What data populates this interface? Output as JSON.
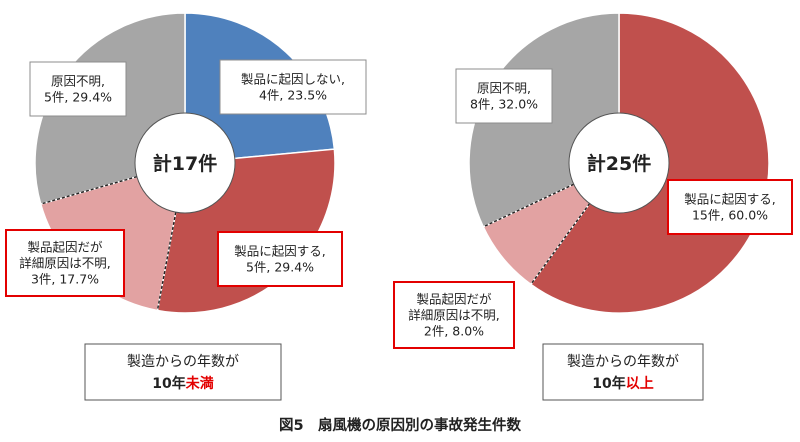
{
  "figure_title": "図5　扇風機の原因別の事故発生件数",
  "colors": {
    "not_product": "#4f81bd",
    "product": "#c0504d",
    "product_detail_unknown": "#e2a2a2",
    "unknown": "#a6a6a6",
    "label_border_red": "#e30000",
    "highlight_red": "#e30000"
  },
  "chart_data": [
    {
      "type": "pie",
      "variant": "donut",
      "center_label": "計17件",
      "caption_line1": "製造からの年数が",
      "caption_line2_prefix": "10年",
      "caption_line2_highlight": "未満",
      "total": 17,
      "slices": [
        {
          "lines": [
            "製品に起因しない,",
            "4件, 23.5%"
          ],
          "count": 4,
          "percent": 23.5,
          "color": "#4f81bd",
          "red_box": false
        },
        {
          "lines": [
            "製品に起因する,",
            "5件, 29.4%"
          ],
          "count": 5,
          "percent": 29.4,
          "color": "#c0504d",
          "red_box": true
        },
        {
          "lines": [
            "製品起因だが",
            "詳細原因は不明,",
            "3件, 17.7%"
          ],
          "count": 3,
          "percent": 17.7,
          "color": "#e2a2a2",
          "red_box": true
        },
        {
          "lines": [
            "原因不明,",
            "5件, 29.4%"
          ],
          "count": 5,
          "percent": 29.4,
          "color": "#a6a6a6",
          "red_box": false
        }
      ]
    },
    {
      "type": "pie",
      "variant": "donut",
      "center_label": "計25件",
      "caption_line1": "製造からの年数が",
      "caption_line2_prefix": "10年",
      "caption_line2_highlight": "以上",
      "total": 25,
      "slices": [
        {
          "lines": [
            "製品に起因する,",
            "15件, 60.0%"
          ],
          "count": 15,
          "percent": 60.0,
          "color": "#c0504d",
          "red_box": true
        },
        {
          "lines": [
            "製品起因だが",
            "詳細原因は不明,",
            "2件, 8.0%"
          ],
          "count": 2,
          "percent": 8.0,
          "color": "#e2a2a2",
          "red_box": true
        },
        {
          "lines": [
            "原因不明,",
            "8件, 32.0%"
          ],
          "count": 8,
          "percent": 32.0,
          "color": "#a6a6a6",
          "red_box": false
        }
      ]
    }
  ]
}
